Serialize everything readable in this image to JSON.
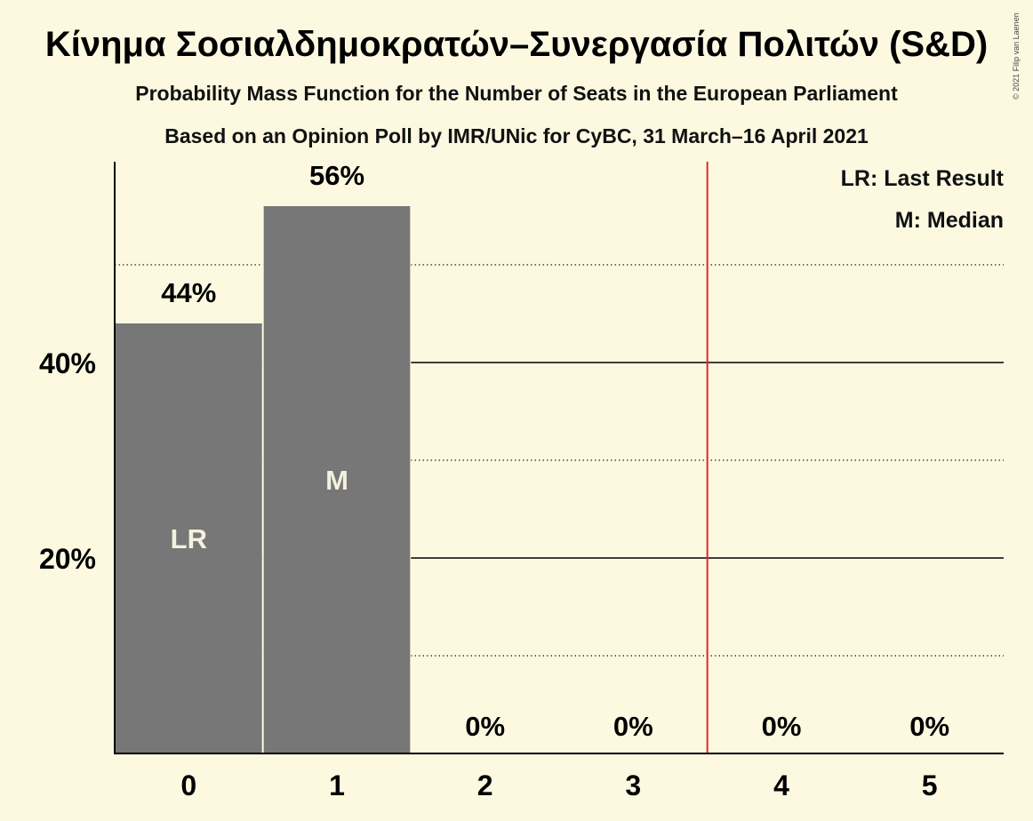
{
  "chart_data": {
    "type": "bar",
    "title": "Κίνημα Σοσιαλδημοκρατών–Συνεργασία Πολιτών (S&D)",
    "subtitle": "Probability Mass Function for the Number of Seats in the European Parliament",
    "subtitle2": "Based on an Opinion Poll by IMR/UNic for CyBC, 31 March–16 April 2021",
    "categories": [
      "0",
      "1",
      "2",
      "3",
      "4",
      "5"
    ],
    "values": [
      44,
      56,
      0,
      0,
      0,
      0
    ],
    "value_labels": [
      "44%",
      "56%",
      "0%",
      "0%",
      "0%",
      "0%"
    ],
    "bar_markers": [
      "LR",
      "M",
      "",
      "",
      "",
      ""
    ],
    "y_ticks": [
      20,
      40
    ],
    "y_tick_labels": [
      "20%",
      "40%"
    ],
    "y_minor_gridlines": [
      10,
      30,
      50
    ],
    "ylim": [
      0,
      60
    ],
    "majority_line_x": 3.5,
    "legend": [
      "LR: Last Result",
      "M: Median"
    ],
    "copyright": "© 2021 Filip van Laenen",
    "colors": {
      "background": "#fdf9e1",
      "bar": "#777777",
      "majority_line": "#e0262b",
      "axis": "#000000"
    }
  }
}
